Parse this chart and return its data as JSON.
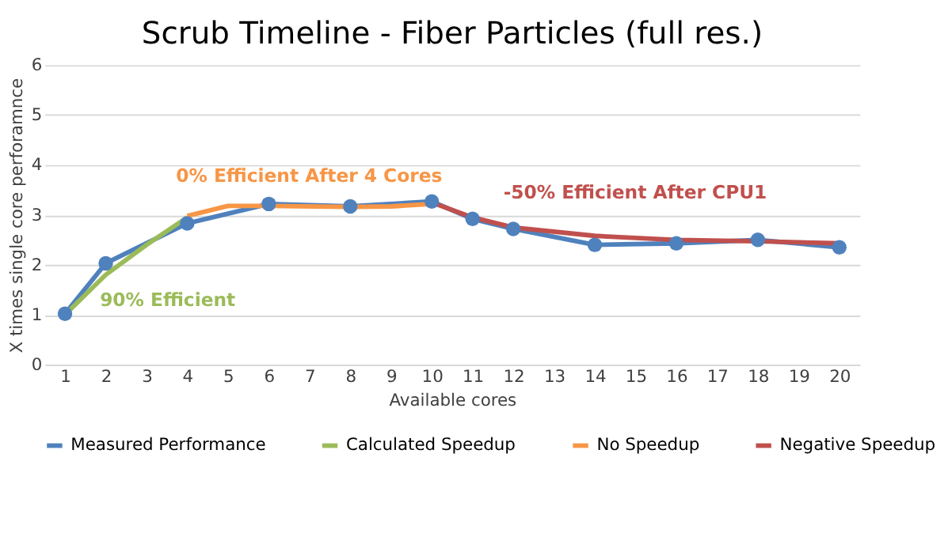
{
  "chart_data": {
    "type": "line",
    "title": "Scrub Timeline - Fiber Particles (full res.)",
    "xlabel": "Available cores",
    "ylabel": "X times single core perforamnce",
    "xlim": [
      0.5,
      20.5
    ],
    "xticks": [
      1,
      2,
      3,
      4,
      5,
      6,
      7,
      8,
      9,
      10,
      11,
      12,
      13,
      14,
      15,
      16,
      17,
      18,
      19,
      20
    ],
    "ylim": [
      0,
      6
    ],
    "yticks": [
      0,
      1,
      2,
      3,
      4,
      5,
      6
    ],
    "grid": "y",
    "legend": "bottom",
    "series": [
      {
        "name": "Measured Performance",
        "color": "#4f81bd",
        "marker": "circle",
        "x": [
          1,
          2,
          4,
          6,
          8,
          10,
          11,
          12,
          14,
          16,
          18,
          20
        ],
        "values": [
          1.02,
          2.03,
          2.83,
          3.22,
          3.17,
          3.27,
          2.92,
          2.72,
          2.4,
          2.43,
          2.5,
          2.35
        ]
      },
      {
        "name": "Calculated Speedup",
        "color": "#9bbb59",
        "marker": "none",
        "x": [
          1,
          2,
          3,
          4
        ],
        "values": [
          1.0,
          1.8,
          2.4,
          2.95
        ]
      },
      {
        "name": "No Speedup",
        "color": "#f79646",
        "marker": "none",
        "x": [
          4,
          5,
          6,
          8,
          9,
          10
        ],
        "values": [
          2.98,
          3.18,
          3.18,
          3.16,
          3.17,
          3.22
        ]
      },
      {
        "name": "Negative Speedup",
        "color": "#c0504d",
        "marker": "none",
        "x": [
          10,
          11,
          12,
          14,
          16,
          18,
          20
        ],
        "values": [
          3.25,
          2.95,
          2.75,
          2.58,
          2.5,
          2.47,
          2.43
        ]
      }
    ],
    "annotations": [
      "90% Efficient",
      "0% Efficient After 4 Cores",
      "-50% Efficient After CPU1"
    ]
  }
}
